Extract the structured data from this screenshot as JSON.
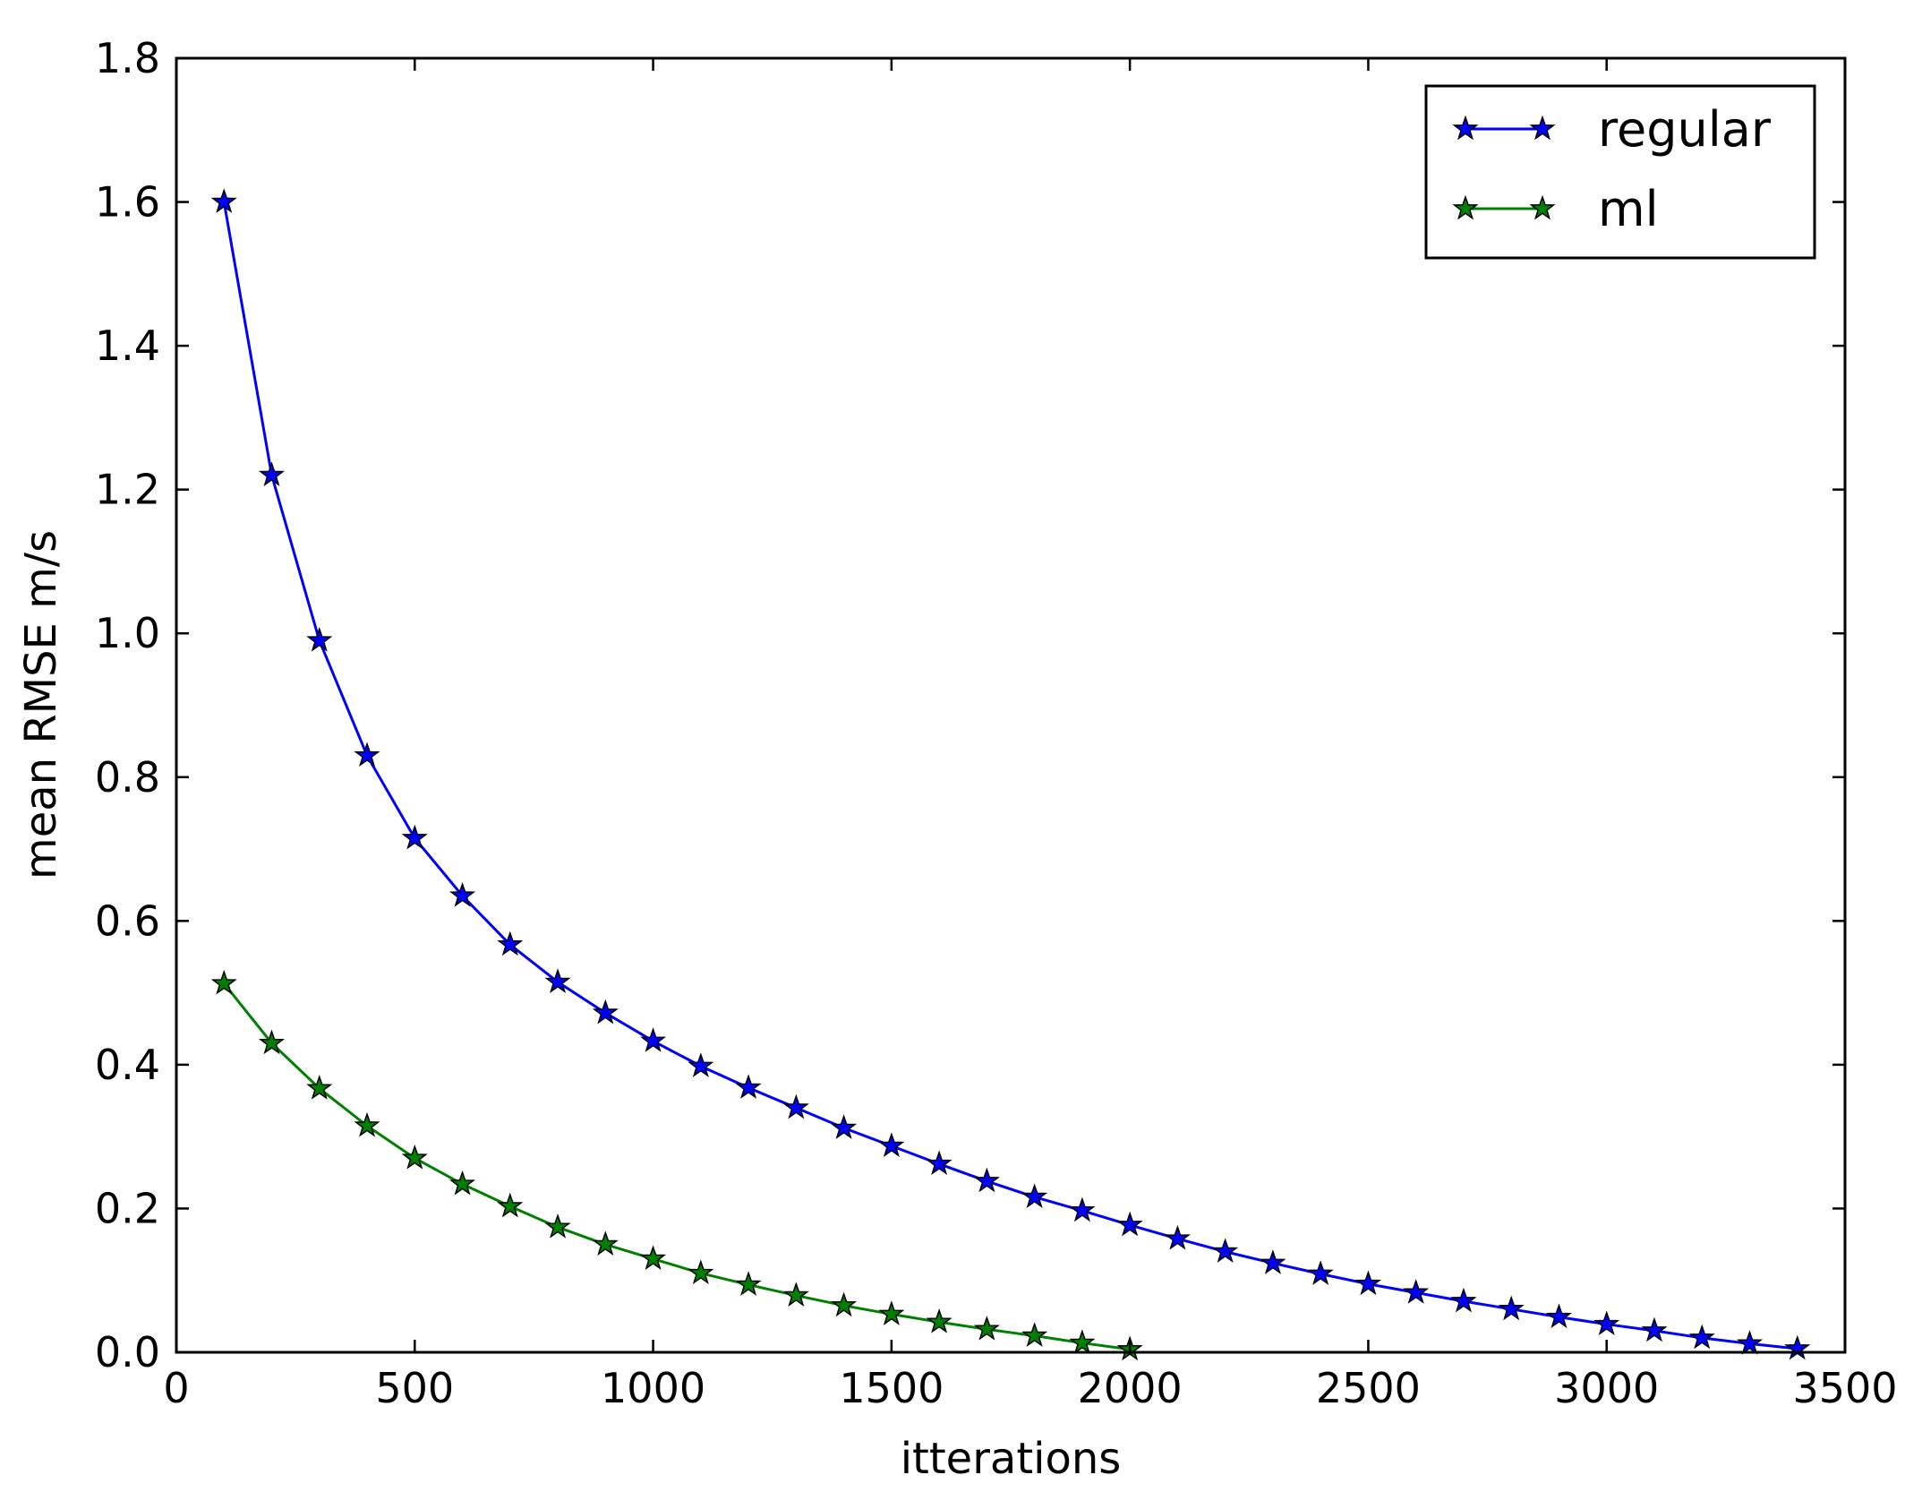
{
  "chart_data": {
    "type": "line",
    "title": "",
    "xlabel": "itterations",
    "ylabel": "mean RMSE m/s",
    "xlim": [
      0,
      3500
    ],
    "ylim": [
      0.0,
      1.8
    ],
    "x_ticks": [
      "0",
      "500",
      "1000",
      "1500",
      "2000",
      "2500",
      "3000",
      "3500"
    ],
    "y_ticks": [
      "0.0",
      "0.2",
      "0.4",
      "0.6",
      "0.8",
      "1.0",
      "1.2",
      "1.4",
      "1.6",
      "1.8"
    ],
    "grid": false,
    "legend_position": "top-right",
    "series": [
      {
        "name": "regular",
        "color": "#0000ff",
        "marker": "star",
        "x": [
          100,
          200,
          300,
          400,
          500,
          600,
          700,
          800,
          900,
          1000,
          1100,
          1200,
          1300,
          1400,
          1500,
          1600,
          1700,
          1800,
          1900,
          2000,
          2100,
          2200,
          2300,
          2400,
          2500,
          2600,
          2700,
          2800,
          2900,
          3000,
          3100,
          3200,
          3300,
          3400
        ],
        "values": [
          1.6,
          1.22,
          0.99,
          0.83,
          0.715,
          0.635,
          0.567,
          0.515,
          0.472,
          0.433,
          0.398,
          0.368,
          0.34,
          0.312,
          0.287,
          0.262,
          0.238,
          0.216,
          0.197,
          0.177,
          0.158,
          0.14,
          0.124,
          0.109,
          0.095,
          0.083,
          0.071,
          0.06,
          0.049,
          0.039,
          0.03,
          0.02,
          0.012,
          0.005
        ]
      },
      {
        "name": "ml",
        "color": "#008000",
        "marker": "star",
        "x": [
          100,
          200,
          300,
          400,
          500,
          600,
          700,
          800,
          900,
          1000,
          1100,
          1200,
          1300,
          1400,
          1500,
          1600,
          1700,
          1800,
          1900,
          2000
        ],
        "values": [
          0.513,
          0.43,
          0.367,
          0.315,
          0.27,
          0.234,
          0.203,
          0.174,
          0.15,
          0.13,
          0.11,
          0.094,
          0.079,
          0.065,
          0.053,
          0.042,
          0.032,
          0.023,
          0.013,
          0.004
        ]
      }
    ]
  }
}
